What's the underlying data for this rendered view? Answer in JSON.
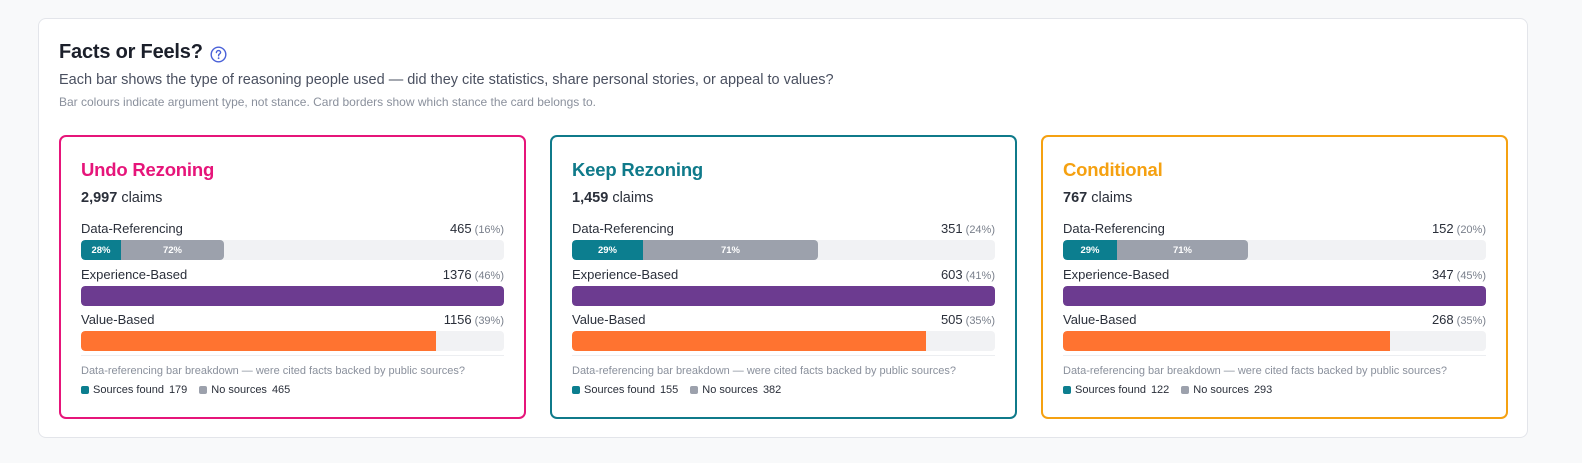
{
  "header": {
    "title": "Facts or Feels?",
    "subtitle": "Each bar shows the type of reasoning people used — did they cite statistics, share personal stories, or appeal to values?",
    "note": "Bar colours indicate argument type, not stance. Card borders show which stance the card belongs to."
  },
  "colors": {
    "data_referencing_sources_found": "#0c7e8f",
    "data_referencing_no_sources": "#9ca1ac",
    "experience_based": "#6c3b90",
    "value_based": "#ff7330",
    "help_icon": "#4a61d8"
  },
  "labels": {
    "claims_suffix": "claims",
    "breakdown_caption": "Data-referencing bar breakdown — were cited facts backed by public sources?",
    "sources_found": "Sources found",
    "no_sources": "No sources"
  },
  "cards": [
    {
      "title": "Undo Rezoning",
      "color": "#e6157a",
      "claims": "2,997",
      "metrics": [
        {
          "label": "Data-Referencing",
          "value": "465",
          "pct": "(16%)"
        },
        {
          "label": "Experience-Based",
          "value": "1376",
          "pct": "(46%)"
        },
        {
          "label": "Value-Based",
          "value": "1156",
          "pct": "(39%)"
        }
      ],
      "split": {
        "found_label": "28%",
        "none_label": "72%"
      },
      "sources_found": "179",
      "no_sources": "465"
    },
    {
      "title": "Keep Rezoning",
      "color": "#0f7a8a",
      "claims": "1,459",
      "metrics": [
        {
          "label": "Data-Referencing",
          "value": "351",
          "pct": "(24%)"
        },
        {
          "label": "Experience-Based",
          "value": "603",
          "pct": "(41%)"
        },
        {
          "label": "Value-Based",
          "value": "505",
          "pct": "(35%)"
        }
      ],
      "split": {
        "found_label": "29%",
        "none_label": "71%"
      },
      "sources_found": "155",
      "no_sources": "382"
    },
    {
      "title": "Conditional",
      "color": "#f5a111",
      "claims": "767",
      "metrics": [
        {
          "label": "Data-Referencing",
          "value": "152",
          "pct": "(20%)"
        },
        {
          "label": "Experience-Based",
          "value": "347",
          "pct": "(45%)"
        },
        {
          "label": "Value-Based",
          "value": "268",
          "pct": "(35%)"
        }
      ],
      "split": {
        "found_label": "29%",
        "none_label": "71%"
      },
      "sources_found": "122",
      "no_sources": "293"
    }
  ],
  "chart_data": [
    {
      "type": "bar",
      "title": "Undo Rezoning",
      "categories": [
        "Data-Referencing",
        "Experience-Based",
        "Value-Based"
      ],
      "values": [
        465,
        1376,
        1156
      ],
      "percentages": [
        16,
        46,
        39
      ],
      "data_referencing_split": {
        "sources_found_pct": 28,
        "no_sources_pct": 72
      }
    },
    {
      "type": "bar",
      "title": "Keep Rezoning",
      "categories": [
        "Data-Referencing",
        "Experience-Based",
        "Value-Based"
      ],
      "values": [
        351,
        603,
        505
      ],
      "percentages": [
        24,
        41,
        35
      ],
      "data_referencing_split": {
        "sources_found_pct": 29,
        "no_sources_pct": 71
      }
    },
    {
      "type": "bar",
      "title": "Conditional",
      "categories": [
        "Data-Referencing",
        "Experience-Based",
        "Value-Based"
      ],
      "values": [
        152,
        347,
        268
      ],
      "percentages": [
        20,
        45,
        35
      ],
      "data_referencing_split": {
        "sources_found_pct": 29,
        "no_sources_pct": 71
      }
    }
  ]
}
